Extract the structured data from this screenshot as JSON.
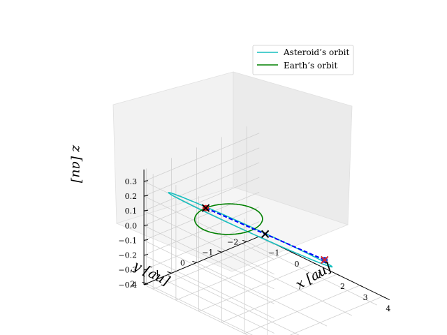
{
  "chart_data": {
    "type": "line3d",
    "xlabel": "x [au]",
    "ylabel": "y [au]",
    "zlabel": "z [au]",
    "x_ticks": [
      "−1",
      "0",
      "1",
      "2",
      "3",
      "4"
    ],
    "y_ticks": [
      "−2",
      "−1",
      "0",
      "1",
      "2"
    ],
    "z_ticks": [
      "−0.4",
      "−0.3",
      "−0.2",
      "−0.1",
      "0.0",
      "0.1",
      "0.2",
      "0.3"
    ],
    "xlim": [
      -1.4,
      4.3
    ],
    "ylim": [
      -2.5,
      2.1
    ],
    "zlim": [
      -0.4,
      0.38
    ],
    "grid": true,
    "legend_position": "top-right",
    "series": [
      {
        "name": "Asteroid’s orbit",
        "color": "#17bfbf",
        "kind": "ellipse",
        "semi_major": 2.7,
        "eccentricity": 0.6,
        "inclination_deg": 8,
        "perihelion_x": 0.9
      },
      {
        "name": "Earth’s orbit",
        "color": "#008000",
        "kind": "circle",
        "radius": 1.0
      }
    ],
    "markers": [
      {
        "name": "Earth position",
        "x": -1.0,
        "y": 0.0,
        "z": 0.0,
        "style": "red-dot-black-x"
      },
      {
        "name": "Asteroid position",
        "x": 4.2,
        "y": 0.0,
        "z": 0.04,
        "style": "blue-dot-red-x"
      },
      {
        "name": "Midpoint",
        "x": 1.6,
        "y": 0.0,
        "z": 0.02,
        "style": "black-x"
      }
    ],
    "connector": {
      "color": "#0000ff",
      "style": "dashed"
    }
  }
}
